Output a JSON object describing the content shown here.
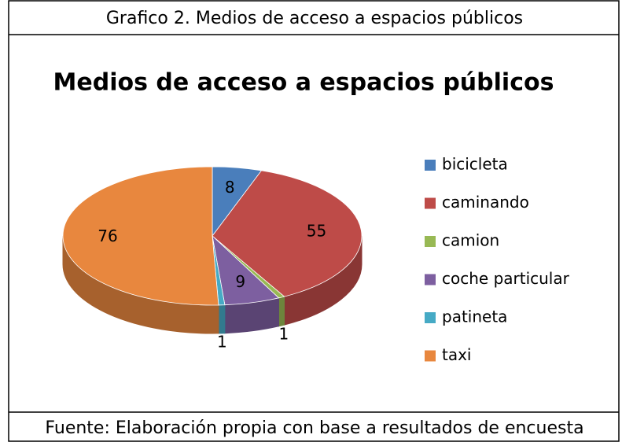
{
  "caption": "Grafico 2. Medios de acceso a espacios públicos",
  "source": "Fuente: Elaboración propia con base a resultados de encuesta",
  "chart_data": {
    "type": "pie3d",
    "title": "Medios de acceso a espacios públicos",
    "categories": [
      "bicicleta",
      "caminando",
      "camion",
      "coche particular",
      "patineta",
      "taxi"
    ],
    "values": [
      8,
      55,
      1,
      9,
      1,
      76
    ],
    "colors": [
      "#4a7ebb",
      "#be4b48",
      "#98b954",
      "#7d5fa0",
      "#46aac5",
      "#e8873e"
    ],
    "legend": "right"
  }
}
